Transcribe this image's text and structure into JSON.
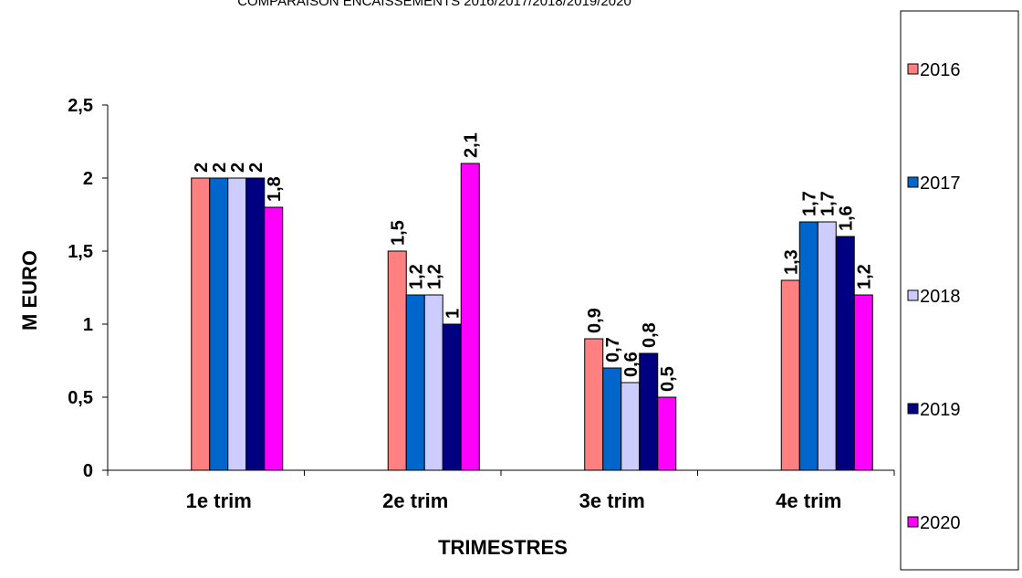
{
  "chart_data": {
    "type": "bar",
    "title": "COMPARAISON ENCAISSEMENTS 2016/2017/2018/2019/2020",
    "xlabel": "TRIMESTRES",
    "ylabel": "M EURO",
    "ylim": [
      0,
      2.5
    ],
    "yticks": [
      "0",
      "0,5",
      "1",
      "1,5",
      "2",
      "2,5"
    ],
    "ytick_values": [
      0,
      0.5,
      1,
      1.5,
      2,
      2.5
    ],
    "categories": [
      "1e trim",
      "2e trim",
      "3e trim",
      "4e trim"
    ],
    "grid": false,
    "legend_position": "right",
    "series": [
      {
        "name": "2016",
        "color": "#ff8080",
        "values": [
          2,
          1.5,
          0.9,
          1.3
        ],
        "labels": [
          "2",
          "1,5",
          "0,9",
          "1,3"
        ]
      },
      {
        "name": "2017",
        "color": "#0066cc",
        "values": [
          2,
          1.2,
          0.7,
          1.7
        ],
        "labels": [
          "2",
          "1,2",
          "0,7",
          "1,7"
        ]
      },
      {
        "name": "2018",
        "color": "#ccccff",
        "values": [
          2,
          1.2,
          0.6,
          1.7
        ],
        "labels": [
          "2",
          "1,2",
          "0,6",
          "1,7"
        ]
      },
      {
        "name": "2019",
        "color": "#000080",
        "values": [
          2,
          1,
          0.8,
          1.6
        ],
        "labels": [
          "2",
          "1",
          "0,8",
          "1,6"
        ]
      },
      {
        "name": "2020",
        "color": "#ff00ff",
        "values": [
          1.8,
          2.1,
          0.5,
          1.2
        ],
        "labels": [
          "1,8",
          "2,1",
          "0,5",
          "1,2"
        ]
      }
    ]
  }
}
